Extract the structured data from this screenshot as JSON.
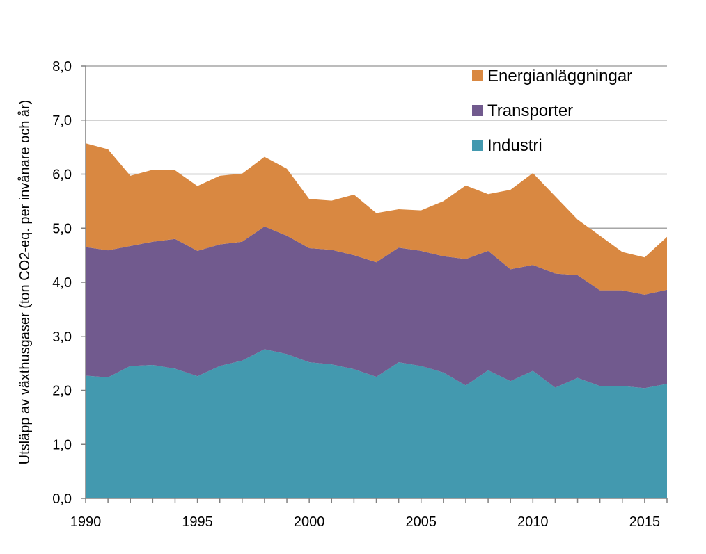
{
  "chart_data": {
    "type": "area",
    "stacked": true,
    "title": "",
    "xlabel": "",
    "ylabel": "Utsläpp av växthusgaser (ton CO2-eq. per invånare och år)",
    "xlim": [
      1990,
      2016
    ],
    "ylim": [
      0,
      8
    ],
    "x_ticks": [
      "1990",
      "1995",
      "2000",
      "2005",
      "2010",
      "2015"
    ],
    "y_ticks": [
      "0,0",
      "1,0",
      "2,0",
      "3,0",
      "4,0",
      "5,0",
      "6,0",
      "7,0",
      "8,0"
    ],
    "grid": true,
    "legend_position": "top-right",
    "x": [
      1990,
      1991,
      1992,
      1993,
      1994,
      1995,
      1996,
      1997,
      1998,
      1999,
      2000,
      2001,
      2002,
      2003,
      2004,
      2005,
      2006,
      2007,
      2008,
      2009,
      2010,
      2011,
      2012,
      2013,
      2014,
      2015,
      2016
    ],
    "series": [
      {
        "name": "Industri",
        "color": "#4399AF",
        "values": [
          2.27,
          2.24,
          2.45,
          2.47,
          2.4,
          2.26,
          2.45,
          2.55,
          2.76,
          2.67,
          2.52,
          2.48,
          2.39,
          2.25,
          2.52,
          2.45,
          2.33,
          2.09,
          2.37,
          2.17,
          2.36,
          2.05,
          2.23,
          2.08,
          2.08,
          2.04,
          2.12
        ]
      },
      {
        "name": "Transporter",
        "color": "#715A8E",
        "values": [
          2.38,
          2.35,
          2.22,
          2.28,
          2.4,
          2.32,
          2.25,
          2.2,
          2.27,
          2.19,
          2.11,
          2.12,
          2.11,
          2.12,
          2.12,
          2.13,
          2.15,
          2.34,
          2.21,
          2.07,
          1.96,
          2.11,
          1.9,
          1.77,
          1.77,
          1.73,
          1.74
        ]
      },
      {
        "name": "Energianläggningar",
        "color": "#D98841",
        "values": [
          1.92,
          1.87,
          1.3,
          1.33,
          1.27,
          1.2,
          1.27,
          1.26,
          1.29,
          1.24,
          0.91,
          0.91,
          1.12,
          0.91,
          0.71,
          0.75,
          1.02,
          1.36,
          1.05,
          1.47,
          1.7,
          1.43,
          1.03,
          1.01,
          0.71,
          0.69,
          0.98
        ]
      }
    ],
    "legend": [
      "Energianläggningar",
      "Transporter",
      "Industri"
    ]
  }
}
